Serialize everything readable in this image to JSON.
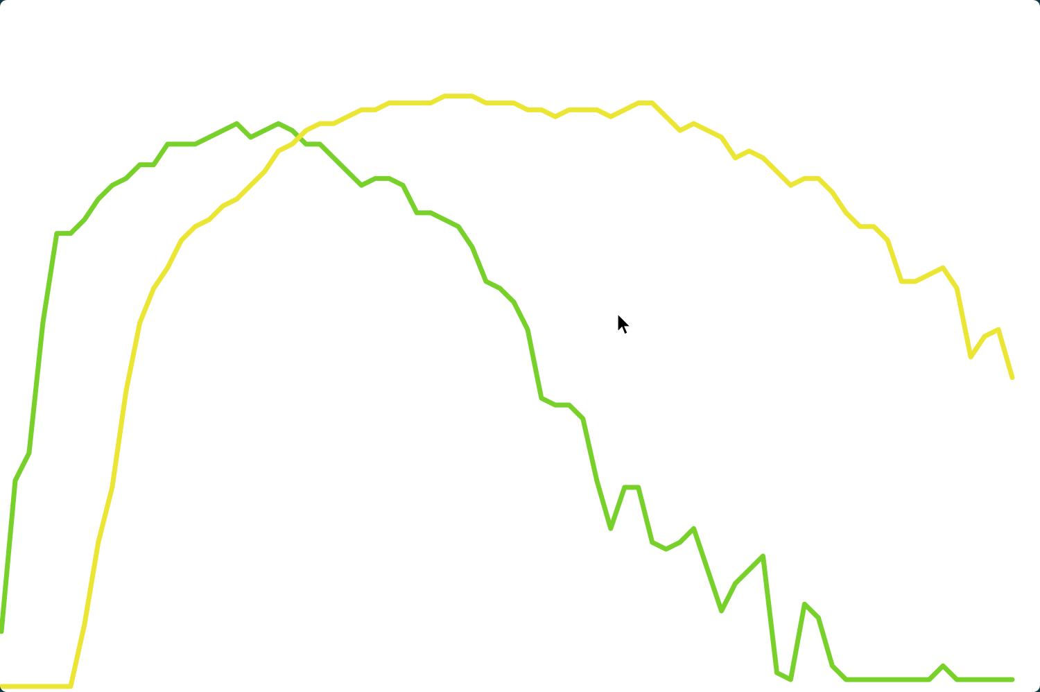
{
  "chart_data": {
    "type": "line",
    "ylim": [
      0,
      100
    ],
    "series": [
      {
        "color": "#78d12a",
        "values": [
          8,
          30,
          34,
          53,
          66,
          66,
          68,
          71,
          73,
          74,
          76,
          76,
          79,
          79,
          79,
          80,
          81,
          82,
          80,
          81,
          82,
          81,
          79,
          79,
          77,
          75,
          73,
          74,
          74,
          73,
          69,
          69,
          68,
          67,
          64,
          59,
          58,
          56,
          52,
          42,
          41,
          41,
          39,
          30,
          23,
          29,
          29,
          21,
          20,
          21,
          23,
          17,
          11,
          15,
          17,
          19,
          2,
          1,
          12,
          10,
          3,
          1,
          1,
          1,
          1,
          1,
          1,
          1,
          3,
          1,
          1,
          1,
          1,
          1
        ]
      },
      {
        "color": "#ebe534",
        "values": [
          0,
          0,
          0,
          0,
          0,
          0,
          9,
          21,
          29,
          43,
          53,
          58,
          61,
          65,
          67,
          68,
          70,
          71,
          73,
          75,
          78,
          79,
          81,
          82,
          82,
          83,
          84,
          84,
          85,
          85,
          85,
          85,
          86,
          86,
          86,
          85,
          85,
          85,
          84,
          84,
          83,
          84,
          84,
          84,
          83,
          84,
          85,
          85,
          83,
          81,
          82,
          81,
          80,
          77,
          78,
          77,
          75,
          73,
          74,
          74,
          72,
          69,
          67,
          67,
          65,
          59,
          59,
          60,
          61,
          58,
          48,
          51,
          52,
          45
        ]
      }
    ]
  }
}
